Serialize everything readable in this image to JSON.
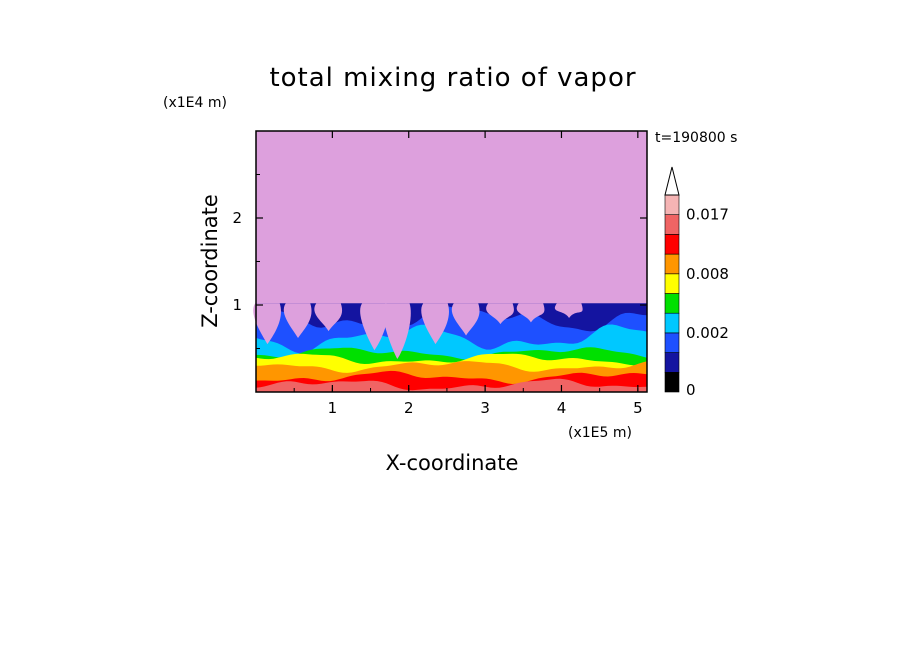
{
  "chart_data": {
    "type": "heatmap",
    "title": "total mixing ratio of vapor",
    "xlabel": "X-coordinate",
    "ylabel": "Z-coordinate",
    "x_unit": "(x1E5 m)",
    "y_unit": "(x1E4 m)",
    "time_label": "t=190800 s",
    "xlim": [
      0,
      5.12
    ],
    "ylim": [
      0,
      3.0
    ],
    "x_ticks": [
      "1",
      "2",
      "3",
      "4",
      "5"
    ],
    "y_ticks": [
      "1",
      "2"
    ],
    "colorbar": {
      "labels": [
        "0",
        "0.002",
        "0.008",
        "0.017"
      ],
      "levels": [
        {
          "color": "#000000"
        },
        {
          "color": "#1414a0"
        },
        {
          "color": "#1e50ff"
        },
        {
          "color": "#00c8ff"
        },
        {
          "color": "#00e000"
        },
        {
          "color": "#ffff00"
        },
        {
          "color": "#ff9600"
        },
        {
          "color": "#ff0000"
        },
        {
          "color": "#f06464"
        },
        {
          "color": "#f5b4b4"
        }
      ],
      "extend": "max"
    },
    "field": {
      "background_color": "#dda0dd",
      "layers": [
        {
          "color": "#1414a0",
          "top": 1.02
        },
        {
          "color": "#1e50ff",
          "top": 0.85
        },
        {
          "color": "#00c8ff",
          "top": 0.62
        },
        {
          "color": "#00e000",
          "top": 0.45
        },
        {
          "color": "#ffff00",
          "top": 0.38
        },
        {
          "color": "#ff9600",
          "top": 0.3
        },
        {
          "color": "#ff0000",
          "top": 0.17
        },
        {
          "color": "#f06464",
          "top": 0.08
        }
      ]
    }
  }
}
